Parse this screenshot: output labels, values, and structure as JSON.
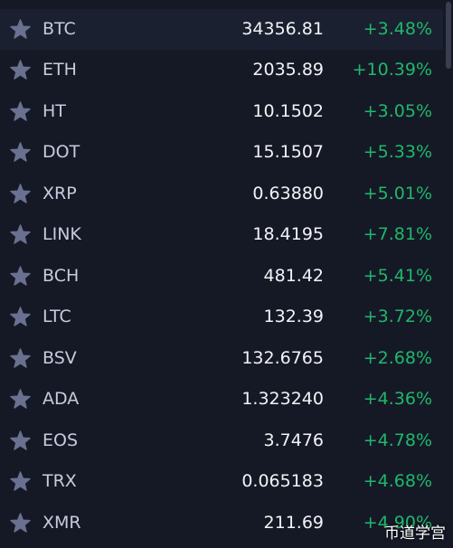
{
  "rows": [
    {
      "symbol": "BTC",
      "price": "34356.81",
      "change": "+3.48%"
    },
    {
      "symbol": "ETH",
      "price": "2035.89",
      "change": "+10.39%"
    },
    {
      "symbol": "HT",
      "price": "10.1502",
      "change": "+3.05%"
    },
    {
      "symbol": "DOT",
      "price": "15.1507",
      "change": "+5.33%"
    },
    {
      "symbol": "XRP",
      "price": "0.63880",
      "change": "+5.01%"
    },
    {
      "symbol": "LINK",
      "price": "18.4195",
      "change": "+7.81%"
    },
    {
      "symbol": "BCH",
      "price": "481.42",
      "change": "+5.41%"
    },
    {
      "symbol": "LTC",
      "price": "132.39",
      "change": "+3.72%"
    },
    {
      "symbol": "BSV",
      "price": "132.6765",
      "change": "+2.68%"
    },
    {
      "symbol": "ADA",
      "price": "1.323240",
      "change": "+4.36%"
    },
    {
      "symbol": "EOS",
      "price": "3.7476",
      "change": "+4.78%"
    },
    {
      "symbol": "TRX",
      "price": "0.065183",
      "change": "+4.68%"
    },
    {
      "symbol": "XMR",
      "price": "211.69",
      "change": "+4.90%"
    }
  ],
  "watermark": "币道学宫"
}
